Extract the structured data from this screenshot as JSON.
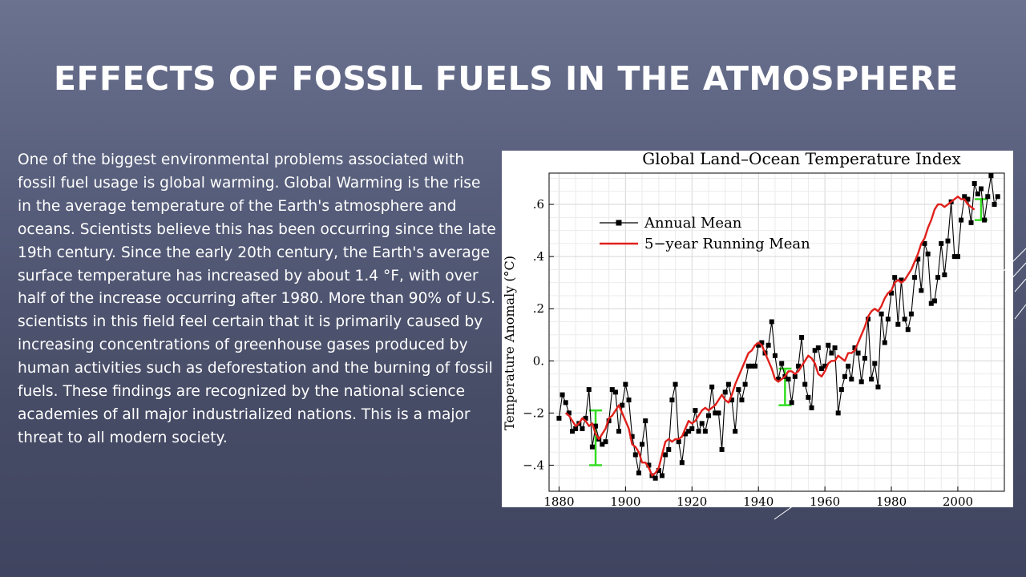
{
  "slide": {
    "title": "EFFECTS OF FOSSIL FUELS IN THE ATMOSPHERE",
    "body": "One of the biggest environmental problems associated with fossil fuel usage is global warming. Global Warming is the rise in the average temperature of the Earth's atmosphere and oceans.  Scientists believe this has been occurring since the late 19th century.  Since the early 20th century, the Earth's average surface temperature has increased by about 1.4 °F, with over half of the increase occurring after 1980. More than 90% of U.S. scientists in this field feel certain that it is primarily caused by increasing concentrations of greenhouse gases produced by human activities such as deforestation and the burning of fossil fuels. These findings are recognized by the national science academies of all major industrialized nations. This is a major threat to all modern society."
  },
  "colors": {
    "annual": "#000000",
    "running": "#e0201b",
    "error_bar": "#33dd22"
  },
  "chart_data": {
    "type": "line",
    "title": "Global Land–Ocean Temperature Index",
    "xlabel": "",
    "ylabel": "Temperature Anomaly (°C)",
    "xlim": [
      1877,
      2014
    ],
    "ylim": [
      -0.5,
      0.72
    ],
    "x_ticks": [
      1880,
      1900,
      1920,
      1940,
      1960,
      1980,
      2000
    ],
    "x_tick_labels": [
      "1880",
      "1900",
      "1920",
      "1940",
      "1960",
      "1980",
      "2000"
    ],
    "y_ticks": [
      -0.4,
      -0.2,
      0.0,
      0.2,
      0.4,
      0.6
    ],
    "y_tick_labels": [
      "−.4",
      "−.2",
      "0.",
      ".2",
      ".4",
      ".6"
    ],
    "grid": true,
    "legend": "top-left",
    "series": [
      {
        "name": "Annual Mean",
        "style": "line-with-square-markers",
        "x_start": 1880,
        "values": [
          -0.22,
          -0.13,
          -0.16,
          -0.2,
          -0.27,
          -0.26,
          -0.24,
          -0.26,
          -0.22,
          -0.11,
          -0.33,
          -0.25,
          -0.3,
          -0.32,
          -0.31,
          -0.23,
          -0.11,
          -0.12,
          -0.27,
          -0.17,
          -0.09,
          -0.15,
          -0.29,
          -0.36,
          -0.43,
          -0.32,
          -0.23,
          -0.4,
          -0.44,
          -0.45,
          -0.42,
          -0.44,
          -0.36,
          -0.34,
          -0.15,
          -0.09,
          -0.31,
          -0.39,
          -0.28,
          -0.27,
          -0.26,
          -0.19,
          -0.27,
          -0.24,
          -0.27,
          -0.21,
          -0.1,
          -0.2,
          -0.2,
          -0.34,
          -0.12,
          -0.09,
          -0.15,
          -0.27,
          -0.11,
          -0.15,
          -0.09,
          -0.02,
          -0.02,
          -0.02,
          0.06,
          0.07,
          0.03,
          0.06,
          0.15,
          0.02,
          -0.07,
          -0.01,
          -0.06,
          -0.07,
          -0.16,
          -0.06,
          -0.02,
          0.09,
          -0.09,
          -0.14,
          -0.18,
          0.04,
          0.05,
          -0.03,
          -0.02,
          0.06,
          0.03,
          0.05,
          -0.2,
          -0.11,
          -0.06,
          -0.02,
          -0.07,
          0.05,
          0.03,
          -0.08,
          0.01,
          0.16,
          -0.07,
          -0.01,
          -0.1,
          0.18,
          0.07,
          0.16,
          0.26,
          0.32,
          0.14,
          0.31,
          0.16,
          0.12,
          0.18,
          0.32,
          0.39,
          0.27,
          0.45,
          0.41,
          0.22,
          0.23,
          0.32,
          0.45,
          0.33,
          0.46,
          0.61,
          0.4,
          0.4,
          0.54,
          0.63,
          0.62,
          0.53,
          0.68,
          0.64,
          0.66,
          0.54,
          0.63,
          0.71,
          0.6,
          0.63
        ],
        "display_values": [
          -0.22,
          -0.13,
          -0.16,
          -0.2,
          -0.27,
          -0.26,
          -0.24,
          -0.26,
          -0.22,
          -0.11,
          -0.33,
          -0.25,
          -0.3,
          -0.32,
          -0.31,
          -0.23,
          -0.11,
          -0.12,
          -0.27,
          -0.17,
          -0.09,
          -0.15,
          -0.29,
          -0.36,
          -0.43,
          -0.32,
          -0.23,
          -0.4,
          -0.44,
          -0.45,
          -0.42,
          -0.44,
          -0.36,
          -0.34,
          -0.15,
          -0.09,
          -0.31,
          -0.39,
          -0.28,
          -0.27,
          -0.26,
          -0.19,
          -0.27,
          -0.24,
          -0.27,
          -0.21,
          -0.1,
          -0.2,
          -0.2,
          -0.34,
          -0.12,
          -0.09,
          -0.15,
          -0.27,
          -0.11,
          -0.15,
          -0.09,
          -0.02,
          -0.02,
          -0.02,
          0.06,
          0.07,
          0.03,
          0.06,
          0.15,
          0.02,
          -0.07,
          -0.01,
          -0.06,
          -0.07,
          -0.16,
          -0.06,
          -0.02,
          0.09,
          -0.09,
          -0.14,
          -0.18,
          0.04,
          0.05,
          -0.03,
          -0.02,
          0.06,
          0.03,
          0.05,
          -0.2,
          -0.11,
          -0.06,
          -0.02,
          -0.07,
          0.05,
          0.03,
          -0.08,
          0.01,
          0.16,
          -0.07,
          -0.01,
          -0.1,
          0.18,
          0.07,
          0.16,
          0.26,
          0.32,
          0.14,
          0.31,
          0.16,
          0.12,
          0.18,
          0.32,
          0.39,
          0.27,
          0.45,
          0.41,
          0.22,
          0.23,
          0.32,
          0.45,
          0.33,
          0.46,
          0.61,
          0.4,
          0.4,
          0.54,
          0.63,
          0.62,
          0.53,
          0.68,
          0.64,
          0.66,
          0.54,
          0.63,
          0.71,
          0.6,
          0.63
        ]
      },
      {
        "name": "5−year Running Mean",
        "style": "line",
        "x_start": 1882,
        "values": [
          -0.2,
          -0.21,
          -0.23,
          -0.25,
          -0.24,
          -0.22,
          -0.23,
          -0.25,
          -0.24,
          -0.28,
          -0.3,
          -0.28,
          -0.26,
          -0.22,
          -0.21,
          -0.19,
          -0.17,
          -0.2,
          -0.23,
          -0.26,
          -0.32,
          -0.33,
          -0.35,
          -0.39,
          -0.39,
          -0.41,
          -0.44,
          -0.43,
          -0.41,
          -0.36,
          -0.31,
          -0.3,
          -0.31,
          -0.3,
          -0.3,
          -0.29,
          -0.26,
          -0.23,
          -0.24,
          -0.23,
          -0.21,
          -0.19,
          -0.18,
          -0.19,
          -0.18,
          -0.17,
          -0.15,
          -0.13,
          -0.15,
          -0.16,
          -0.13,
          -0.09,
          -0.06,
          -0.03,
          0.0,
          0.03,
          0.04,
          0.06,
          0.07,
          0.06,
          0.03,
          0.0,
          -0.03,
          -0.07,
          -0.08,
          -0.07,
          -0.06,
          -0.04,
          -0.04,
          -0.05,
          -0.04,
          -0.02,
          0.0,
          0.02,
          0.01,
          -0.01,
          -0.05,
          -0.06,
          -0.04,
          -0.01,
          0.0,
          0.0,
          0.02,
          0.01,
          0.0,
          0.03,
          0.03,
          0.04,
          0.07,
          0.1,
          0.13,
          0.17,
          0.19,
          0.2,
          0.19,
          0.21,
          0.24,
          0.26,
          0.27,
          0.3,
          0.31,
          0.3,
          0.31,
          0.33,
          0.35,
          0.38,
          0.41,
          0.45,
          0.47,
          0.51,
          0.54,
          0.58,
          0.6,
          0.6,
          0.59,
          0.6,
          0.61,
          0.62,
          0.63,
          0.62,
          0.62,
          0.6,
          0.59,
          0.58
        ]
      }
    ],
    "uncertainty_bars": [
      {
        "x": 1891,
        "low": -0.4,
        "high": -0.19
      },
      {
        "x": 1948,
        "low": -0.17,
        "high": -0.03
      },
      {
        "x": 2007,
        "low": 0.54,
        "high": 0.62
      }
    ]
  }
}
